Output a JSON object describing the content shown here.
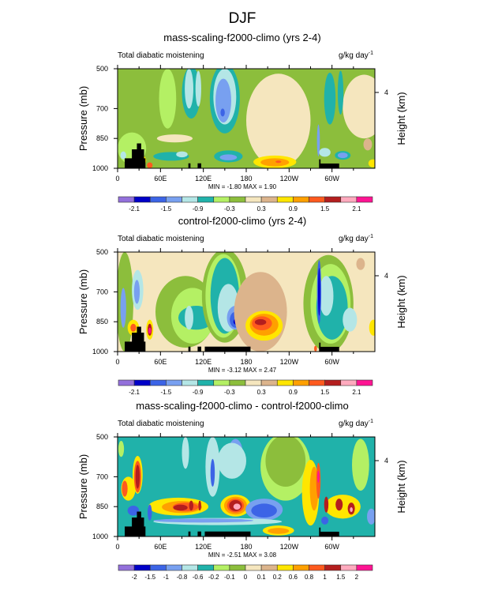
{
  "figure_title": "DJF",
  "chart_data": [
    {
      "type": "heatmap",
      "title": "mass-scaling-f2000-climo (yrs 2-4)",
      "left_string": "Total diabatic moistening",
      "right_string": "g/kg day",
      "right_string_superscript": "-1",
      "ylabel": "Pressure (mb)",
      "ylabel_right": "Height (km)",
      "yticks": [
        "500",
        "700",
        "850",
        "1000"
      ],
      "ytick_values": [
        500,
        700,
        850,
        1000
      ],
      "yticks_right": [
        "4"
      ],
      "ylim": [
        1000,
        500
      ],
      "xlim": [
        0,
        360
      ],
      "xticks": [
        "0",
        "60E",
        "120E",
        "180",
        "120W",
        "60W"
      ],
      "xtick_values": [
        0,
        60,
        120,
        180,
        240,
        300
      ],
      "min_max": "MIN =  -1.80  MAX =   1.90",
      "colorbar_levels": [
        -2.1,
        -1.8,
        -1.5,
        -1.2,
        -0.9,
        -0.6,
        -0.3,
        0,
        0.3,
        0.6,
        0.9,
        1.2,
        1.5,
        1.8,
        2.1
      ],
      "colorbar_labels": [
        "-2.1",
        "-1.5",
        "-0.9",
        "-0.3",
        "0.3",
        "0.9",
        "1.5",
        "2.1"
      ],
      "colorbar_labeled_levels": [
        0,
        2,
        4,
        6,
        8,
        10,
        12,
        14
      ],
      "background_value": -0.15,
      "features": [
        [
          225,
          760,
          45,
          235,
          0.1
        ],
        [
          80,
          850,
          25,
          20,
          0.1
        ],
        [
          345,
          690,
          30,
          160,
          0.1
        ],
        [
          350,
          880,
          6,
          30,
          0.4
        ],
        [
          70,
          650,
          12,
          150,
          -0.4
        ],
        [
          103,
          620,
          13,
          130,
          -0.7
        ],
        [
          100,
          600,
          6,
          100,
          -1.0
        ],
        [
          113,
          600,
          4,
          90,
          -1.0
        ],
        [
          150,
          650,
          21,
          175,
          -0.7
        ],
        [
          150,
          640,
          16,
          140,
          -1.0
        ],
        [
          148,
          660,
          11,
          110,
          -1.3
        ],
        [
          147,
          720,
          3,
          20,
          -1.6
        ],
        [
          75,
          940,
          25,
          22,
          -0.7
        ],
        [
          90,
          930,
          8,
          15,
          -1.0
        ],
        [
          155,
          940,
          20,
          30,
          -0.7
        ],
        [
          155,
          945,
          12,
          15,
          -1.4
        ],
        [
          220,
          968,
          30,
          32,
          0.75
        ],
        [
          220,
          970,
          20,
          20,
          1.0
        ],
        [
          225,
          967,
          4,
          6,
          1.3
        ],
        [
          297,
          650,
          8,
          130,
          -0.7
        ],
        [
          312,
          620,
          4,
          110,
          -0.7
        ],
        [
          281,
          860,
          2,
          80,
          -1.4
        ],
        [
          290,
          920,
          8,
          22,
          -1.0
        ],
        [
          315,
          935,
          11,
          22,
          -0.7
        ],
        [
          315,
          935,
          7,
          14,
          -1.3
        ],
        [
          20,
          900,
          20,
          80,
          -0.4
        ],
        [
          8,
          935,
          4,
          20,
          -1.0
        ],
        [
          30,
          960,
          10,
          30,
          0.75
        ],
        [
          45,
          985,
          4,
          15,
          1.3
        ],
        [
          357,
          975,
          6,
          20,
          0.75
        ]
      ],
      "terrain": [
        [
          10,
          1000
        ],
        [
          10,
          950
        ],
        [
          20,
          950
        ],
        [
          20,
          905
        ],
        [
          27,
          905
        ],
        [
          27,
          875
        ],
        [
          33,
          875
        ],
        [
          33,
          905
        ],
        [
          37,
          905
        ],
        [
          37,
          950
        ],
        [
          39,
          950
        ],
        [
          39,
          1000
        ]
      ],
      "terrain_blocks": [
        [
          99,
          102,
          975
        ],
        [
          112,
          117,
          975
        ],
        [
          282,
          310,
          976
        ],
        [
          282,
          284,
          955
        ]
      ]
    },
    {
      "type": "heatmap",
      "title": "control-f2000-climo (yrs 2-4)",
      "left_string": "Total diabatic moistening",
      "right_string": "g/kg day",
      "right_string_superscript": "-1",
      "ylabel": "Pressure (mb)",
      "ylabel_right": "Height (km)",
      "yticks": [
        "500",
        "700",
        "850",
        "1000"
      ],
      "ytick_values": [
        500,
        700,
        850,
        1000
      ],
      "yticks_right": [
        "4"
      ],
      "ylim": [
        1000,
        500
      ],
      "xlim": [
        0,
        360
      ],
      "xticks": [
        "0",
        "60E",
        "120E",
        "180",
        "120W",
        "60W"
      ],
      "xtick_values": [
        0,
        60,
        120,
        180,
        240,
        300
      ],
      "min_max": "MIN =  -3.12  MAX =   2.47",
      "colorbar_levels": [
        -2.1,
        -1.8,
        -1.5,
        -1.2,
        -0.9,
        -0.6,
        -0.3,
        0,
        0.3,
        0.6,
        0.9,
        1.2,
        1.5,
        1.8,
        2.1
      ],
      "colorbar_labels": [
        "-2.1",
        "-1.5",
        "-0.9",
        "-0.3",
        "0.3",
        "0.9",
        "1.5",
        "2.1"
      ],
      "colorbar_labeled_levels": [
        0,
        2,
        4,
        6,
        8,
        10,
        12,
        14
      ],
      "background_value": 0.1,
      "features": [
        [
          10,
          750,
          12,
          250,
          -0.2
        ],
        [
          95,
          800,
          42,
          180,
          -0.2
        ],
        [
          105,
          820,
          30,
          140,
          -0.4
        ],
        [
          110,
          830,
          25,
          60,
          -0.7
        ],
        [
          100,
          830,
          6,
          60,
          -1.0
        ],
        [
          150,
          720,
          32,
          235,
          -0.2
        ],
        [
          148,
          720,
          25,
          210,
          -0.4
        ],
        [
          150,
          720,
          20,
          190,
          -0.7
        ],
        [
          155,
          780,
          15,
          120,
          -1.0
        ],
        [
          165,
          830,
          12,
          60,
          -1.3
        ],
        [
          165,
          840,
          8,
          40,
          -1.6
        ],
        [
          166,
          850,
          4,
          15,
          -1.95
        ],
        [
          200,
          800,
          37,
          200,
          0.45
        ],
        [
          205,
          870,
          26,
          75,
          0.75
        ],
        [
          205,
          865,
          20,
          55,
          1.0
        ],
        [
          202,
          858,
          14,
          35,
          1.3
        ],
        [
          200,
          852,
          8,
          15,
          1.6
        ],
        [
          8,
          780,
          4,
          100,
          -1.3
        ],
        [
          28,
          690,
          8,
          100,
          -1.0
        ],
        [
          27,
          700,
          4,
          60,
          -1.4
        ],
        [
          22,
          880,
          8,
          40,
          0.75
        ],
        [
          22,
          880,
          4,
          20,
          1.3
        ],
        [
          45,
          890,
          5,
          50,
          0.75
        ],
        [
          45,
          890,
          3,
          30,
          1.6
        ],
        [
          45,
          895,
          2,
          15,
          2.2
        ],
        [
          295,
          760,
          35,
          245,
          -0.2
        ],
        [
          298,
          760,
          28,
          200,
          -0.4
        ],
        [
          300,
          780,
          22,
          160,
          -0.7
        ],
        [
          292,
          720,
          10,
          100,
          -1.0
        ],
        [
          282,
          700,
          3,
          160,
          -1.6
        ],
        [
          282,
          700,
          1.5,
          120,
          -1.95
        ],
        [
          325,
          840,
          10,
          60,
          -1.0
        ],
        [
          340,
          560,
          6,
          30,
          0.4
        ],
        [
          358,
          880,
          6,
          40,
          0.75
        ],
        [
          277,
          985,
          2,
          15,
          1.3
        ]
      ],
      "terrain": [
        [
          10,
          1000
        ],
        [
          10,
          950
        ],
        [
          20,
          950
        ],
        [
          20,
          905
        ],
        [
          27,
          905
        ],
        [
          27,
          875
        ],
        [
          33,
          875
        ],
        [
          33,
          905
        ],
        [
          37,
          905
        ],
        [
          37,
          950
        ],
        [
          39,
          950
        ],
        [
          39,
          1000
        ]
      ],
      "terrain_blocks": [
        [
          99,
          102,
          975
        ],
        [
          112,
          117,
          975
        ],
        [
          122,
          186,
          975
        ],
        [
          282,
          310,
          976
        ],
        [
          282,
          284,
          955
        ]
      ]
    },
    {
      "type": "heatmap",
      "title": "mass-scaling-f2000-climo - control-f2000-climo",
      "left_string": "Total diabatic moistening",
      "right_string": "g/kg day",
      "right_string_superscript": "-1",
      "ylabel": "Pressure (mb)",
      "ylabel_right": "Height (km)",
      "yticks": [
        "500",
        "700",
        "850",
        "1000"
      ],
      "ytick_values": [
        500,
        700,
        850,
        1000
      ],
      "yticks_right": [
        "4"
      ],
      "ylim": [
        1000,
        500
      ],
      "xlim": [
        0,
        360
      ],
      "xticks": [
        "0",
        "60E",
        "120E",
        "180",
        "120W",
        "60W"
      ],
      "xtick_values": [
        0,
        60,
        120,
        180,
        240,
        300
      ],
      "min_max": "MIN =  -2.51  MAX =   3.08",
      "colorbar_levels": [
        -2,
        -1.5,
        -1,
        -0.8,
        -0.6,
        -0.2,
        -0.1,
        0,
        0.1,
        0.2,
        0.6,
        0.8,
        1,
        1.5,
        2
      ],
      "colorbar_labels": [
        "-2",
        "-1.5",
        "-1",
        "-0.8",
        "-0.6",
        "-0.2",
        "-0.1",
        "0",
        "0.1",
        "0.2",
        "0.6",
        "0.8",
        "1",
        "1.5",
        "2"
      ],
      "colorbar_labeled_levels": [
        0,
        1,
        2,
        3,
        4,
        5,
        6,
        7,
        8,
        9,
        10,
        11,
        12,
        13,
        14
      ],
      "background_value": -0.4,
      "features": [
        [
          235,
          650,
          35,
          170,
          -0.15
        ],
        [
          235,
          620,
          28,
          130,
          -0.05
        ],
        [
          340,
          640,
          12,
          130,
          -0.15
        ],
        [
          85,
          850,
          42,
          45,
          0.4
        ],
        [
          90,
          852,
          28,
          30,
          0.7
        ],
        [
          95,
          852,
          18,
          22,
          0.9
        ],
        [
          88,
          855,
          10,
          15,
          1.2
        ],
        [
          103,
          845,
          3,
          25,
          1.2
        ],
        [
          115,
          845,
          2,
          25,
          1.2
        ],
        [
          165,
          845,
          21,
          55,
          0.4
        ],
        [
          165,
          845,
          16,
          45,
          0.7
        ],
        [
          165,
          845,
          12,
          35,
          0.9
        ],
        [
          165,
          845,
          9,
          28,
          1.2
        ],
        [
          167,
          850,
          5,
          15,
          1.7
        ],
        [
          205,
          865,
          26,
          55,
          -0.9
        ],
        [
          205,
          870,
          18,
          35,
          -1.2
        ],
        [
          140,
          925,
          90,
          18,
          -0.7
        ],
        [
          120,
          920,
          70,
          10,
          -0.9
        ],
        [
          225,
          970,
          22,
          25,
          0.4
        ],
        [
          225,
          972,
          15,
          15,
          0.7
        ],
        [
          15,
          760,
          10,
          60,
          0.4
        ],
        [
          10,
          760,
          4,
          40,
          0.9
        ],
        [
          28,
          690,
          7,
          95,
          0.4
        ],
        [
          28,
          700,
          5,
          80,
          0.9
        ],
        [
          28,
          700,
          3,
          60,
          1.2
        ],
        [
          22,
          870,
          8,
          25,
          -1.2
        ],
        [
          45,
          880,
          3,
          40,
          -1.2
        ],
        [
          5,
          560,
          4,
          40,
          -0.15
        ],
        [
          95,
          580,
          5,
          80,
          -0.7
        ],
        [
          133,
          650,
          10,
          150,
          -0.7
        ],
        [
          133,
          680,
          3,
          70,
          -1.2
        ],
        [
          165,
          580,
          10,
          70,
          -0.9
        ],
        [
          160,
          620,
          20,
          90,
          -0.7
        ],
        [
          270,
          780,
          12,
          165,
          0.4
        ],
        [
          275,
          760,
          6,
          110,
          0.7
        ],
        [
          281,
          720,
          3,
          90,
          0.9
        ],
        [
          281,
          700,
          1.5,
          30,
          2.2
        ],
        [
          315,
          850,
          25,
          60,
          0.4
        ],
        [
          292,
          840,
          3,
          40,
          1.2
        ],
        [
          310,
          840,
          5,
          30,
          1.2
        ],
        [
          327,
          860,
          5,
          30,
          1.2
        ],
        [
          327,
          865,
          2,
          12,
          1.7
        ],
        [
          290,
          920,
          5,
          20,
          -1.2
        ],
        [
          355,
          900,
          6,
          40,
          -0.9
        ]
      ],
      "terrain": [
        [
          10,
          1000
        ],
        [
          10,
          950
        ],
        [
          20,
          950
        ],
        [
          20,
          905
        ],
        [
          27,
          905
        ],
        [
          27,
          875
        ],
        [
          33,
          875
        ],
        [
          33,
          905
        ],
        [
          37,
          905
        ],
        [
          37,
          950
        ],
        [
          39,
          950
        ],
        [
          39,
          1000
        ]
      ],
      "terrain_blocks": [
        [
          99,
          102,
          975
        ],
        [
          112,
          117,
          975
        ],
        [
          122,
          186,
          975
        ],
        [
          282,
          310,
          976
        ],
        [
          282,
          284,
          955
        ]
      ]
    }
  ],
  "colors": [
    "#9370db",
    "#0000c8",
    "#3c64e6",
    "#78a0f0",
    "#b4e6e6",
    "#20b2aa",
    "#b4f064",
    "#8cbe3c",
    "#f5e6be",
    "#dcb48c",
    "#ffe600",
    "#ffa000",
    "#ff5a1e",
    "#b41e1e",
    "#ffaabe",
    "#ff1493"
  ]
}
